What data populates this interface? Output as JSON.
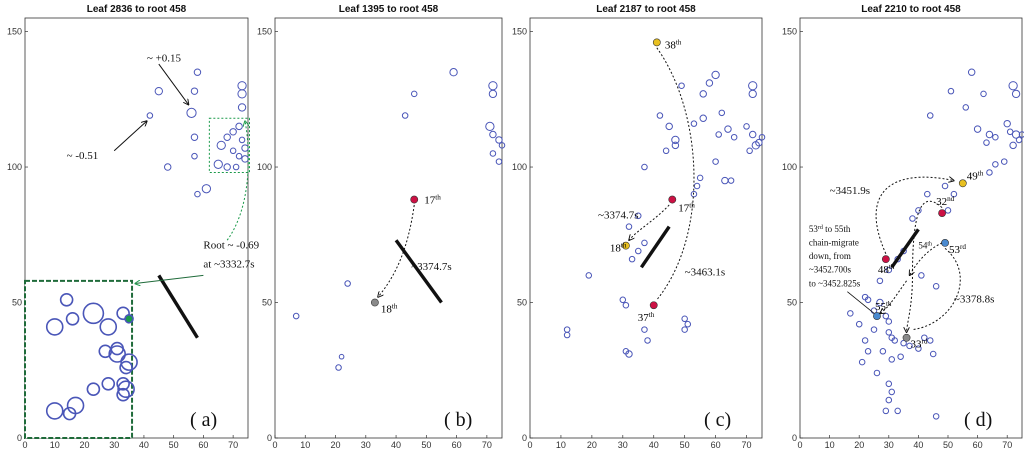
{
  "chart_data": [
    {
      "type": "scatter",
      "title": "Leaf 2836 to root 458",
      "panel_label": "( a)",
      "xlim": [
        0,
        75
      ],
      "ylim": [
        0,
        155
      ],
      "xticks": [
        0,
        10,
        20,
        30,
        40,
        50,
        60,
        70
      ],
      "yticks": [
        0,
        50,
        100,
        150
      ],
      "points": [
        [
          45,
          128,
          1.6
        ],
        [
          42,
          119,
          1.2
        ],
        [
          57,
          128,
          1.4
        ],
        [
          58,
          135,
          1.4
        ],
        [
          56,
          120,
          2.0
        ],
        [
          57,
          111,
          1.4
        ],
        [
          57,
          104,
          1.2
        ],
        [
          48,
          100,
          1.4
        ],
        [
          61,
          92,
          1.8
        ],
        [
          58,
          90,
          1.2
        ],
        [
          66,
          108,
          1.8
        ],
        [
          68,
          111,
          1.4
        ],
        [
          70,
          113,
          1.4
        ],
        [
          72,
          115,
          1.4
        ],
        [
          65,
          101,
          1.8
        ],
        [
          68,
          100,
          1.4
        ],
        [
          70,
          106,
          1.2
        ],
        [
          72,
          104,
          1.2
        ],
        [
          74,
          103,
          1.4
        ],
        [
          73,
          110,
          1.2
        ],
        [
          74,
          107,
          1.4
        ],
        [
          73,
          122,
          1.6
        ],
        [
          73,
          127,
          1.8
        ],
        [
          73,
          130,
          1.8
        ],
        [
          71,
          100,
          1.2
        ]
      ],
      "annotations": [
        {
          "text": "~ +0.15",
          "x": 41,
          "y": 139
        },
        {
          "text": "~ -0.51",
          "x": 14,
          "y": 103
        },
        {
          "text": "Root ~ -0.69",
          "x": 60,
          "y": 70,
          "color": "#1a9a4a"
        },
        {
          "text": "at ~3332.7s",
          "x": 60,
          "y": 63,
          "color": "#1a9a4a"
        }
      ],
      "inset": {
        "box": [
          [
            0,
            0
          ],
          [
            36,
            58
          ]
        ],
        "points": [
          [
            10,
            10,
            4
          ],
          [
            17,
            12,
            4
          ],
          [
            14,
            51,
            3
          ],
          [
            16,
            44,
            3
          ],
          [
            10,
            41,
            4
          ],
          [
            23,
            46,
            5
          ],
          [
            33,
            46,
            3
          ],
          [
            28,
            41,
            4
          ],
          [
            27,
            32,
            3
          ],
          [
            31,
            31,
            4
          ],
          [
            31,
            33,
            3
          ],
          [
            35,
            28,
            4
          ],
          [
            34,
            26,
            3
          ],
          [
            23,
            18,
            3
          ],
          [
            28,
            20,
            3
          ],
          [
            33,
            16,
            3
          ],
          [
            34,
            18,
            4
          ],
          [
            33,
            20,
            3
          ],
          [
            15,
            9,
            3
          ],
          [
            35,
            44,
            2,
            "#1a9a4a"
          ]
        ]
      }
    },
    {
      "type": "scatter",
      "title": "Leaf 1395 to root 458",
      "panel_label": "( b)",
      "xlim": [
        0,
        75
      ],
      "ylim": [
        0,
        155
      ],
      "xticks": [
        0,
        10,
        20,
        30,
        40,
        50,
        60,
        70
      ],
      "yticks": [
        0,
        50,
        100,
        150
      ],
      "points": [
        [
          59,
          135,
          1.6
        ],
        [
          46,
          127,
          1.2
        ],
        [
          43,
          119,
          1.2
        ],
        [
          72,
          130,
          1.8
        ],
        [
          72,
          127,
          1.6
        ],
        [
          71,
          115,
          1.8
        ],
        [
          72,
          112,
          1.4
        ],
        [
          74,
          110,
          1.4
        ],
        [
          75,
          108,
          1.2
        ],
        [
          72,
          105,
          1.2
        ],
        [
          74,
          102,
          1.2
        ],
        [
          24,
          57,
          1.2
        ],
        [
          22,
          30,
          1.0
        ],
        [
          21,
          26,
          1.2
        ],
        [
          7,
          45,
          1.2
        ]
      ],
      "highlights": [
        {
          "x": 46,
          "y": 88,
          "color": "#cc1144",
          "label": "17th"
        },
        {
          "x": 33,
          "y": 50,
          "color": "#8a8a8a",
          "label": "18th"
        }
      ],
      "annotations": [
        {
          "text": "~3374.7s",
          "x": 45,
          "y": 62
        }
      ]
    },
    {
      "type": "scatter",
      "title": "Leaf 2187 to root 458",
      "panel_label": "( c)",
      "xlim": [
        0,
        75
      ],
      "ylim": [
        0,
        155
      ],
      "xticks": [
        0,
        10,
        20,
        30,
        40,
        50,
        60,
        70
      ],
      "yticks": [
        0,
        50,
        100,
        150
      ],
      "points": [
        [
          49,
          130,
          1.2
        ],
        [
          56,
          127,
          1.4
        ],
        [
          58,
          131,
          1.4
        ],
        [
          60,
          134,
          1.6
        ],
        [
          42,
          119,
          1.2
        ],
        [
          45,
          115,
          1.4
        ],
        [
          44,
          106,
          1.2
        ],
        [
          47,
          110,
          1.6
        ],
        [
          47,
          108,
          1.4
        ],
        [
          56,
          118,
          1.4
        ],
        [
          53,
          116,
          1.2
        ],
        [
          62,
          120,
          1.2
        ],
        [
          61,
          112,
          1.2
        ],
        [
          64,
          114,
          1.4
        ],
        [
          66,
          111,
          1.2
        ],
        [
          70,
          115,
          1.2
        ],
        [
          72,
          112,
          1.4
        ],
        [
          73,
          108,
          1.6
        ],
        [
          71,
          106,
          1.2
        ],
        [
          74,
          109,
          1.4
        ],
        [
          75,
          111,
          1.2
        ],
        [
          72,
          127,
          1.6
        ],
        [
          72,
          130,
          1.8
        ],
        [
          60,
          102,
          1.2
        ],
        [
          63,
          95,
          1.4
        ],
        [
          65,
          95,
          1.2
        ],
        [
          55,
          96,
          1.2
        ],
        [
          54,
          93,
          1.2
        ],
        [
          53,
          90,
          1.2
        ],
        [
          37,
          100,
          1.2
        ],
        [
          32,
          78,
          1.2
        ],
        [
          35,
          82,
          1.2
        ],
        [
          37,
          72,
          1.2
        ],
        [
          35,
          69,
          1.2
        ],
        [
          33,
          66,
          1.2
        ],
        [
          19,
          60,
          1.2
        ],
        [
          30,
          51,
          1.2
        ],
        [
          31,
          49,
          1.2
        ],
        [
          37,
          40,
          1.2
        ],
        [
          38,
          36,
          1.2
        ],
        [
          50,
          44,
          1.2
        ],
        [
          51,
          42,
          1.2
        ],
        [
          50,
          40,
          1.2
        ],
        [
          12,
          40,
          1.2
        ],
        [
          12,
          38,
          1.2
        ],
        [
          31,
          32,
          1.2
        ],
        [
          32,
          31,
          1.4
        ]
      ],
      "highlights": [
        {
          "x": 41,
          "y": 146,
          "color": "#e8c020",
          "label": "38th"
        },
        {
          "x": 46,
          "y": 88,
          "color": "#cc1144",
          "label": "17th"
        },
        {
          "x": 31,
          "y": 71,
          "color": "#e8c020",
          "label": "18th"
        },
        {
          "x": 40,
          "y": 49,
          "color": "#cc1144",
          "label": "37th"
        }
      ],
      "annotations": [
        {
          "text": "~3374.7s",
          "x": 22,
          "y": 81
        },
        {
          "text": "~3463.1s",
          "x": 50,
          "y": 60
        }
      ]
    },
    {
      "type": "scatter",
      "title": "Leaf 2210 to root 458",
      "panel_label": "( d)",
      "xlim": [
        0,
        75
      ],
      "ylim": [
        0,
        155
      ],
      "xticks": [
        0,
        10,
        20,
        30,
        40,
        50,
        60,
        70
      ],
      "yticks": [
        0,
        50,
        100,
        150
      ],
      "points": [
        [
          51,
          128,
          1.2
        ],
        [
          58,
          135,
          1.4
        ],
        [
          62,
          127,
          1.2
        ],
        [
          44,
          119,
          1.2
        ],
        [
          56,
          122,
          1.2
        ],
        [
          60,
          114,
          1.4
        ],
        [
          63,
          109,
          1.2
        ],
        [
          64,
          112,
          1.4
        ],
        [
          66,
          111,
          1.2
        ],
        [
          70,
          116,
          1.4
        ],
        [
          71,
          113,
          1.2
        ],
        [
          73,
          112,
          1.6
        ],
        [
          72,
          108,
          1.4
        ],
        [
          74,
          110,
          1.2
        ],
        [
          75,
          112,
          1.2
        ],
        [
          72,
          130,
          1.8
        ],
        [
          73,
          127,
          1.6
        ],
        [
          69,
          102,
          1.2
        ],
        [
          66,
          101,
          1.2
        ],
        [
          64,
          98,
          1.2
        ],
        [
          55,
          94,
          1.2
        ],
        [
          49,
          93,
          1.2
        ],
        [
          52,
          90,
          1.2
        ],
        [
          50,
          84,
          1.2
        ],
        [
          43,
          90,
          1.2
        ],
        [
          40,
          84,
          1.2
        ],
        [
          38,
          81,
          1.2
        ],
        [
          35,
          69,
          1.2
        ],
        [
          33,
          66,
          1.2
        ],
        [
          30,
          62,
          1.2
        ],
        [
          27,
          58,
          1.2
        ],
        [
          41,
          60,
          1.2
        ],
        [
          46,
          56,
          1.2
        ],
        [
          25,
          47,
          1.2
        ],
        [
          27,
          50,
          1.4
        ],
        [
          29,
          45,
          1.2
        ],
        [
          30,
          43,
          1.2
        ],
        [
          30,
          39,
          1.2
        ],
        [
          31,
          37,
          1.2
        ],
        [
          32,
          36,
          1.2
        ],
        [
          35,
          35,
          1.2
        ],
        [
          37,
          34,
          1.2
        ],
        [
          40,
          33,
          1.2
        ],
        [
          42,
          37,
          1.2
        ],
        [
          44,
          36,
          1.2
        ],
        [
          45,
          31,
          1.2
        ],
        [
          25,
          40,
          1.2
        ],
        [
          22,
          36,
          1.2
        ],
        [
          23,
          32,
          1.2
        ],
        [
          21,
          28,
          1.2
        ],
        [
          28,
          32,
          1.2
        ],
        [
          26,
          24,
          1.2
        ],
        [
          31,
          29,
          1.2
        ],
        [
          34,
          30,
          1.2
        ],
        [
          30,
          20,
          1.2
        ],
        [
          31,
          17,
          1.2
        ],
        [
          30,
          14,
          1.2
        ],
        [
          29,
          10,
          1.2
        ],
        [
          33,
          10,
          1.2
        ],
        [
          46,
          8,
          1.2
        ],
        [
          20,
          42,
          1.2
        ],
        [
          17,
          46,
          1.2
        ],
        [
          23,
          51,
          1.2
        ],
        [
          22,
          52,
          1.2
        ]
      ],
      "highlights": [
        {
          "x": 55,
          "y": 94,
          "color": "#e8c020",
          "label": "49th"
        },
        {
          "x": 48,
          "y": 83,
          "color": "#cc1144",
          "label": "32nd"
        },
        {
          "x": 49,
          "y": 72,
          "color": "#4a8ad0",
          "label": "53rd"
        },
        {
          "x": 29,
          "y": 66,
          "color": "#cc1144",
          "label": "48th"
        },
        {
          "x": 26,
          "y": 45,
          "color": "#4a8ad0",
          "label": "55th"
        },
        {
          "x": 36,
          "y": 37,
          "color": "#8a8a8a",
          "label": "33rd"
        }
      ],
      "annotations": [
        {
          "text": "~3451.9s",
          "x": 10,
          "y": 90
        },
        {
          "text": "~3378.8s",
          "x": 52,
          "y": 50
        },
        {
          "text": "53rd to 55th",
          "x": 3,
          "y": 76
        },
        {
          "text": "chain-migrate",
          "x": 3,
          "y": 71
        },
        {
          "text": "down, from",
          "x": 3,
          "y": 66
        },
        {
          "text": "~3452.700s",
          "x": 3,
          "y": 61
        },
        {
          "text": "to ~3452.825s",
          "x": 3,
          "y": 56
        },
        {
          "text": "54th",
          "x": 40,
          "y": 70
        }
      ]
    }
  ]
}
